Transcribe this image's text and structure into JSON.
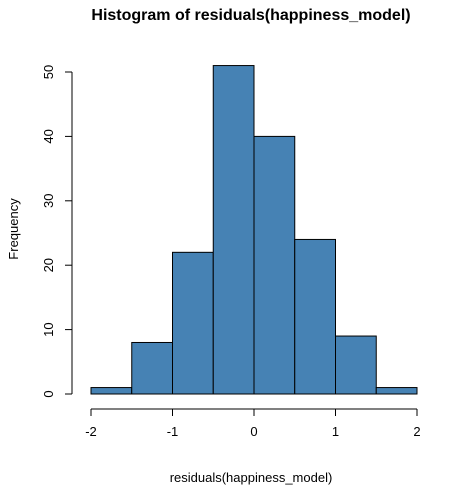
{
  "chart_data": {
    "type": "bar",
    "title": "Histogram of residuals(happiness_model)",
    "xlabel": "residuals(happiness_model)",
    "ylabel": "Frequency",
    "bins": [
      {
        "start": -2.0,
        "end": -1.5,
        "count": 1
      },
      {
        "start": -1.5,
        "end": -1.0,
        "count": 8
      },
      {
        "start": -1.0,
        "end": -0.5,
        "count": 22
      },
      {
        "start": -0.5,
        "end": 0.0,
        "count": 51
      },
      {
        "start": 0.0,
        "end": 0.5,
        "count": 40
      },
      {
        "start": 0.5,
        "end": 1.0,
        "count": 24
      },
      {
        "start": 1.0,
        "end": 1.5,
        "count": 9
      },
      {
        "start": 1.5,
        "end": 2.0,
        "count": 1
      }
    ],
    "xlim": [
      -2,
      2
    ],
    "ylim": [
      0,
      50
    ],
    "xticks": [
      "-2",
      "-1",
      "0",
      "1",
      "2"
    ],
    "yticks": [
      "0",
      "10",
      "20",
      "30",
      "40",
      "50"
    ],
    "bar_color": "#4682b4",
    "bar_border_color": "#000000",
    "grid": false,
    "legend": "none"
  }
}
